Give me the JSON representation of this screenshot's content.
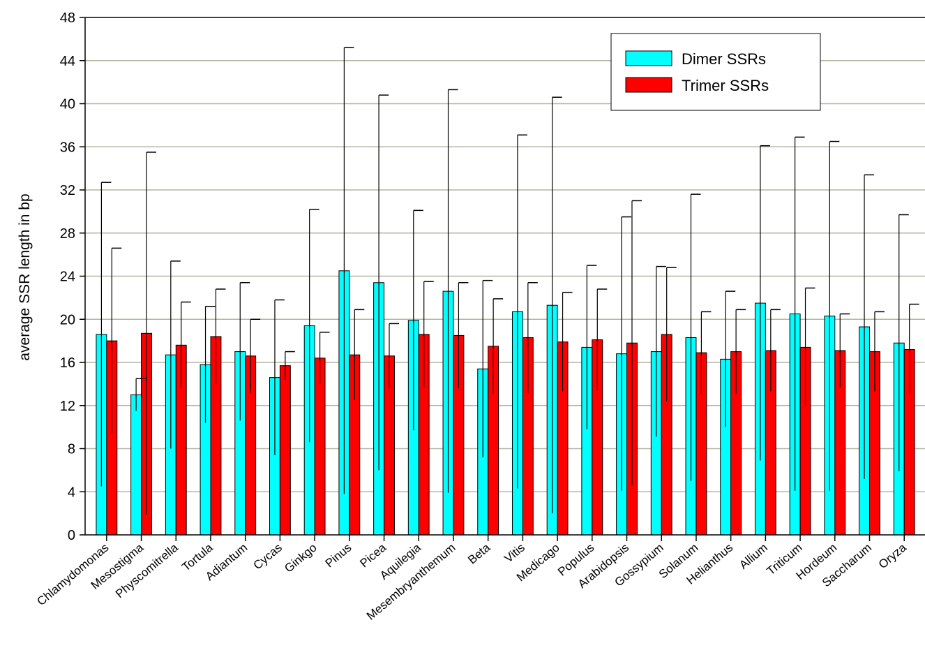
{
  "chart_data": {
    "type": "bar",
    "title": "",
    "xlabel": "",
    "ylabel": "average SSR length in bp",
    "ylim": [
      0,
      48
    ],
    "yticks": [
      0,
      4,
      8,
      12,
      16,
      20,
      24,
      28,
      32,
      36,
      40,
      44,
      48
    ],
    "grid": true,
    "legend_position": "top-right",
    "error_bars": "symmetric",
    "categories": [
      "Chlamydomonas",
      "Mesostigma",
      "Physcomitrella",
      "Tortula",
      "Adiantum",
      "Cycas",
      "Ginkgo",
      "Pinus",
      "Picea",
      "Aquilegia",
      "Mesembryanthemum",
      "Beta",
      "Vitis",
      "Medicago",
      "Populus",
      "Arabidopsis",
      "Gossypium",
      "Solanum",
      "Helianthus",
      "Allium",
      "Triticum",
      "Hordeum",
      "Saccharum",
      "Oryza"
    ],
    "series": [
      {
        "name": "Dimer SSRs",
        "color": "#00ffff",
        "values": [
          18.6,
          13.0,
          16.7,
          15.8,
          17.0,
          14.6,
          19.4,
          24.5,
          23.4,
          19.9,
          22.6,
          15.4,
          20.7,
          21.3,
          17.4,
          16.8,
          17.0,
          18.3,
          16.3,
          21.5,
          20.5,
          20.3,
          19.3,
          17.8
        ],
        "errors": [
          14.1,
          1.5,
          8.7,
          5.4,
          6.4,
          7.2,
          10.8,
          20.7,
          17.4,
          10.2,
          18.7,
          8.2,
          16.4,
          19.3,
          7.6,
          12.7,
          7.9,
          13.3,
          6.3,
          14.6,
          16.4,
          16.2,
          14.1,
          11.9
        ]
      },
      {
        "name": "Trimer SSRs",
        "color": "#ff0000",
        "values": [
          18.0,
          18.7,
          17.6,
          18.4,
          16.6,
          15.7,
          16.4,
          16.7,
          16.6,
          18.6,
          18.5,
          17.5,
          18.3,
          17.9,
          18.1,
          17.8,
          18.6,
          16.9,
          17.0,
          17.1,
          17.4,
          17.1,
          17.0,
          17.2
        ],
        "errors": [
          8.6,
          16.8,
          4.0,
          4.4,
          3.4,
          1.3,
          2.4,
          4.2,
          3.0,
          4.9,
          4.9,
          4.4,
          5.1,
          4.6,
          4.7,
          13.2,
          6.2,
          3.8,
          3.9,
          3.8,
          5.5,
          3.4,
          3.7,
          4.2
        ]
      }
    ]
  }
}
